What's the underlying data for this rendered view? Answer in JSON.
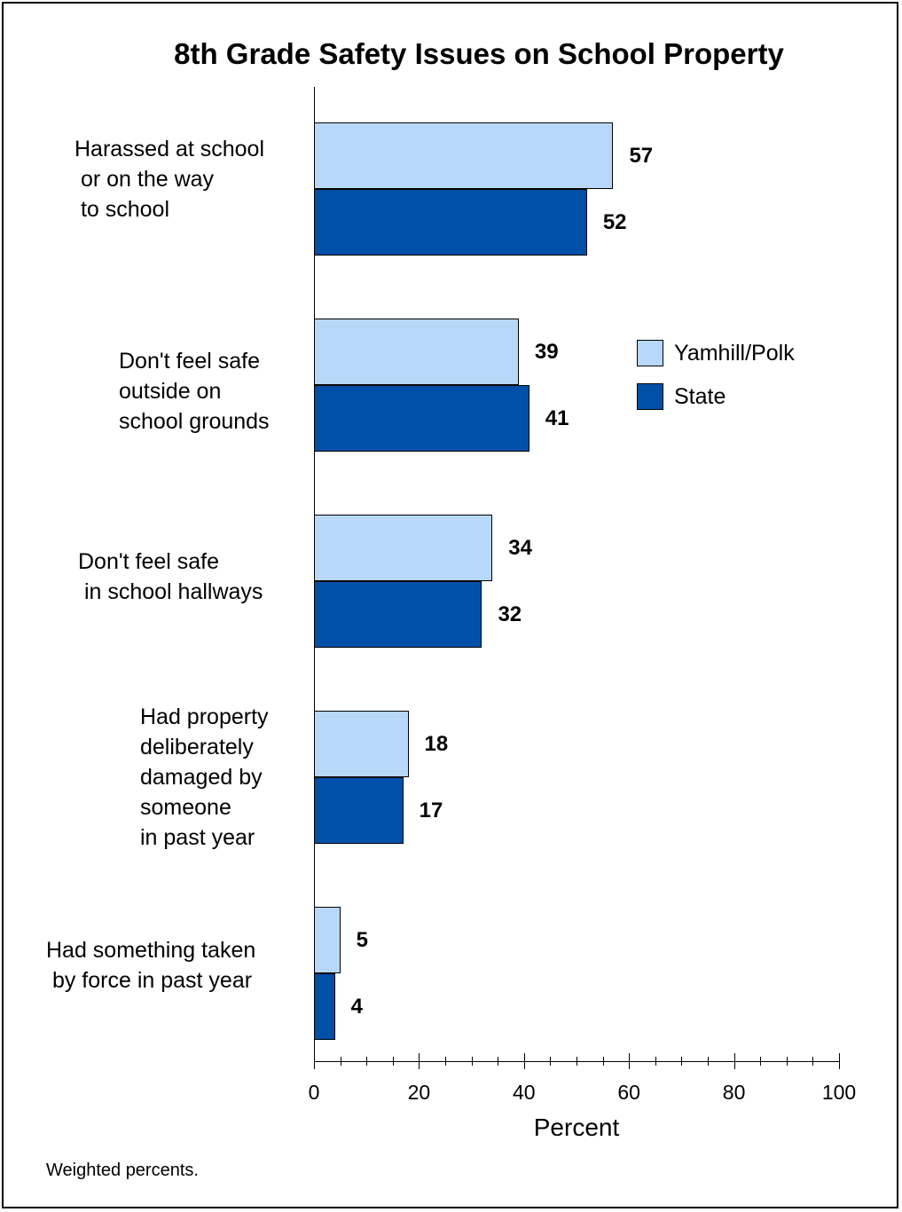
{
  "chart_data": {
    "type": "bar",
    "orientation": "horizontal",
    "title": "8th Grade Safety Issues on School Property",
    "xlabel": "Percent",
    "ylabel": "",
    "xlim": [
      0,
      100
    ],
    "x_ticks": [
      "0",
      "20",
      "40",
      "60",
      "80",
      "100"
    ],
    "categories": [
      "Harassed at school\n or on the way\n to school",
      "Don't feel safe\noutside on\nschool grounds",
      "Don't feel safe\n in school hallways",
      "Had property\ndeliberately\ndamaged by\nsomeone\nin past year",
      "Had something taken\n by force in past year"
    ],
    "series": [
      {
        "name": "Yamhill/Polk",
        "values": [
          57,
          39,
          34,
          18,
          5
        ],
        "color": "#b8d8fa"
      },
      {
        "name": "State",
        "values": [
          52,
          41,
          32,
          17,
          4
        ],
        "color": "#0050a8"
      }
    ],
    "legend_position": "right",
    "grid": false,
    "footnote": "Weighted percents."
  }
}
